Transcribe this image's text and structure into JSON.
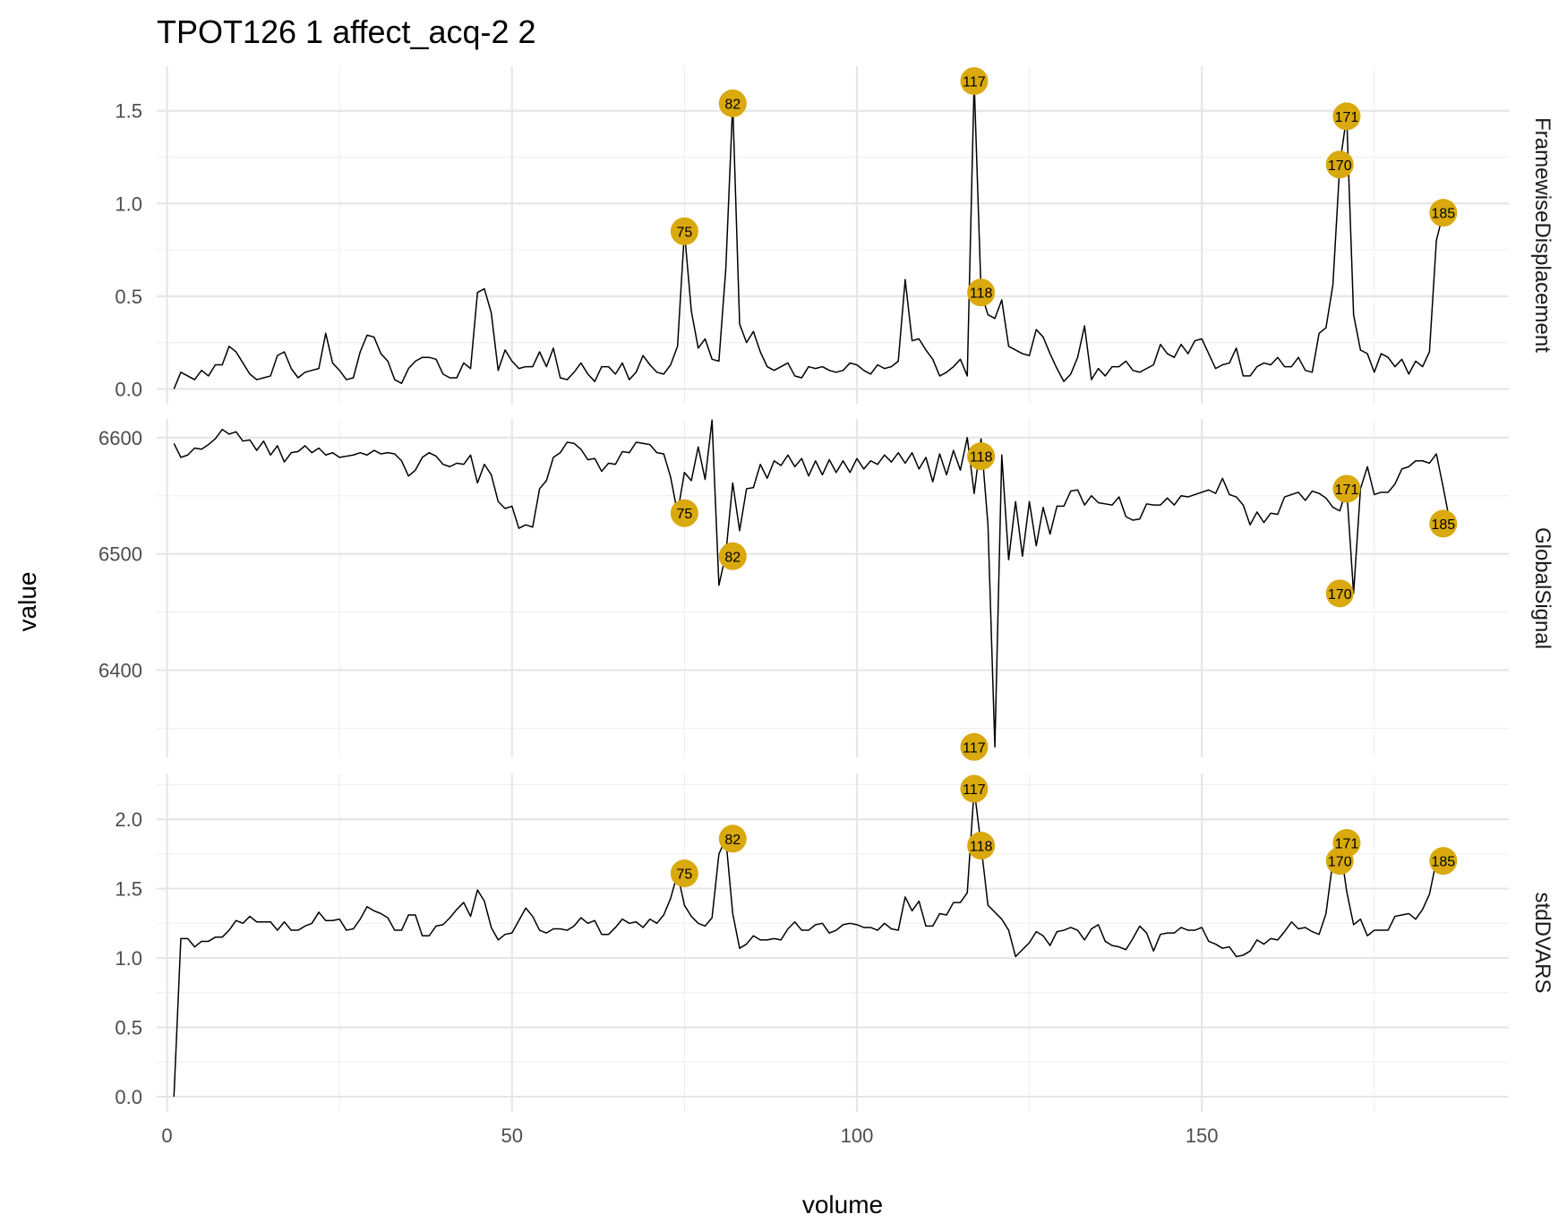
{
  "chart_data": {
    "type": "line",
    "title": "TPOT126  1  affect_acq-2  2",
    "xlabel": "volume",
    "ylabel": "value",
    "xlim": [
      -1.5,
      194.5
    ],
    "x_ticks": [
      0,
      50,
      100,
      150
    ],
    "grid": true,
    "highlight_color": "#D9A90D",
    "line_color": "#000000",
    "panels": [
      {
        "name": "FramewiseDisplacement",
        "ylim": [
          -0.08,
          1.74
        ],
        "y_ticks": [
          0.0,
          0.5,
          1.0,
          1.5
        ],
        "y_tick_labels": [
          "0.0",
          "0.5",
          "1.0",
          "1.5"
        ],
        "values": [
          0.0,
          0.09,
          0.07,
          0.05,
          0.1,
          0.07,
          0.13,
          0.13,
          0.23,
          0.2,
          0.14,
          0.08,
          0.05,
          0.06,
          0.07,
          0.18,
          0.2,
          0.11,
          0.06,
          0.09,
          0.1,
          0.11,
          0.3,
          0.14,
          0.1,
          0.05,
          0.06,
          0.2,
          0.29,
          0.28,
          0.19,
          0.15,
          0.05,
          0.03,
          0.11,
          0.15,
          0.17,
          0.17,
          0.16,
          0.08,
          0.06,
          0.06,
          0.14,
          0.11,
          0.52,
          0.54,
          0.41,
          0.1,
          0.21,
          0.15,
          0.11,
          0.12,
          0.12,
          0.2,
          0.12,
          0.22,
          0.06,
          0.05,
          0.09,
          0.14,
          0.08,
          0.04,
          0.12,
          0.12,
          0.08,
          0.14,
          0.05,
          0.09,
          0.18,
          0.13,
          0.09,
          0.08,
          0.13,
          0.23,
          0.85,
          0.42,
          0.22,
          0.27,
          0.16,
          0.15,
          0.65,
          1.54,
          0.35,
          0.25,
          0.31,
          0.2,
          0.12,
          0.1,
          0.12,
          0.14,
          0.07,
          0.06,
          0.12,
          0.11,
          0.12,
          0.1,
          0.09,
          0.1,
          0.14,
          0.13,
          0.1,
          0.08,
          0.13,
          0.11,
          0.12,
          0.15,
          0.59,
          0.26,
          0.27,
          0.21,
          0.16,
          0.07,
          0.09,
          0.12,
          0.16,
          0.07,
          1.66,
          0.52,
          0.4,
          0.38,
          0.48,
          0.23,
          0.21,
          0.19,
          0.18,
          0.32,
          0.28,
          0.19,
          0.11,
          0.04,
          0.08,
          0.17,
          0.34,
          0.05,
          0.11,
          0.07,
          0.12,
          0.12,
          0.15,
          0.1,
          0.09,
          0.11,
          0.13,
          0.24,
          0.19,
          0.17,
          0.24,
          0.19,
          0.26,
          0.27,
          0.19,
          0.11,
          0.13,
          0.14,
          0.22,
          0.07,
          0.07,
          0.12,
          0.14,
          0.13,
          0.17,
          0.12,
          0.12,
          0.17,
          0.1,
          0.09,
          0.3,
          0.33,
          0.56,
          1.21,
          1.47,
          0.4,
          0.21,
          0.19,
          0.09,
          0.19,
          0.17,
          0.12,
          0.16,
          0.08,
          0.15,
          0.12,
          0.2,
          0.8,
          0.95
        ],
        "labeled_points": [
          {
            "x": 75,
            "y": 0.85,
            "label": "75"
          },
          {
            "x": 82,
            "y": 1.54,
            "label": "82"
          },
          {
            "x": 117,
            "y": 1.66,
            "label": "117"
          },
          {
            "x": 118,
            "y": 0.52,
            "label": "118"
          },
          {
            "x": 170,
            "y": 1.21,
            "label": "170"
          },
          {
            "x": 171,
            "y": 1.47,
            "label": "171"
          },
          {
            "x": 185,
            "y": 0.95,
            "label": "185"
          }
        ]
      },
      {
        "name": "GlobalSignal",
        "ylim": [
          6325,
          6616
        ],
        "y_ticks": [
          6400,
          6500,
          6600
        ],
        "y_tick_labels": [
          "6400",
          "6500",
          "6600"
        ],
        "values": [
          6595,
          6583,
          6585,
          6591,
          6590,
          6594,
          6599,
          6607,
          6603,
          6605,
          6597,
          6598,
          6589,
          6597,
          6585,
          6593,
          6579,
          6587,
          6588,
          6593,
          6587,
          6591,
          6585,
          6587,
          6583,
          6584,
          6585,
          6587,
          6585,
          6589,
          6586,
          6587,
          6586,
          6580,
          6567,
          6572,
          6583,
          6587,
          6584,
          6577,
          6575,
          6578,
          6577,
          6585,
          6561,
          6577,
          6568,
          6545,
          6539,
          6541,
          6522,
          6525,
          6523,
          6556,
          6563,
          6583,
          6587,
          6596,
          6595,
          6590,
          6581,
          6582,
          6571,
          6578,
          6577,
          6588,
          6587,
          6596,
          6595,
          6594,
          6587,
          6586,
          6566,
          6535,
          6570,
          6563,
          6592,
          6564,
          6615,
          6473,
          6500,
          6561,
          6520,
          6556,
          6557,
          6577,
          6565,
          6580,
          6576,
          6585,
          6575,
          6582,
          6567,
          6580,
          6568,
          6581,
          6570,
          6580,
          6570,
          6582,
          6573,
          6580,
          6577,
          6585,
          6579,
          6587,
          6578,
          6587,
          6573,
          6583,
          6562,
          6586,
          6568,
          6589,
          6572,
          6600,
          6552,
          6599,
          6525,
          6334,
          6585,
          6495,
          6545,
          6498,
          6545,
          6507,
          6540,
          6517,
          6541,
          6541,
          6554,
          6555,
          6542,
          6550,
          6544,
          6543,
          6542,
          6549,
          6532,
          6529,
          6530,
          6543,
          6542,
          6542,
          6548,
          6542,
          6550,
          6549,
          6551,
          6553,
          6555,
          6552,
          6565,
          6551,
          6549,
          6542,
          6525,
          6536,
          6527,
          6535,
          6534,
          6549,
          6551,
          6553,
          6546,
          6554,
          6552,
          6548,
          6540,
          6537,
          6556,
          6466,
          6556,
          6575,
          6551,
          6553,
          6553,
          6560,
          6573,
          6575,
          6580,
          6580,
          6578,
          6586,
          6557,
          6526
        ],
        "labeled_points": [
          {
            "x": 75,
            "y": 6535,
            "label": "75"
          },
          {
            "x": 82,
            "y": 6498,
            "label": "82"
          },
          {
            "x": 117,
            "y": 6334,
            "label": "117"
          },
          {
            "x": 118,
            "y": 6584,
            "label": "118"
          },
          {
            "x": 170,
            "y": 6466,
            "label": "170"
          },
          {
            "x": 171,
            "y": 6556,
            "label": "171"
          },
          {
            "x": 185,
            "y": 6526,
            "label": "185"
          }
        ]
      },
      {
        "name": "stdDVARS",
        "ylim": [
          -0.11,
          2.33
        ],
        "y_ticks": [
          0.0,
          0.5,
          1.0,
          1.5,
          2.0
        ],
        "y_tick_labels": [
          "0.0",
          "0.5",
          "1.0",
          "1.5",
          "2.0"
        ],
        "values": [
          0.0,
          1.14,
          1.14,
          1.08,
          1.12,
          1.12,
          1.15,
          1.15,
          1.2,
          1.27,
          1.25,
          1.3,
          1.26,
          1.26,
          1.26,
          1.2,
          1.26,
          1.2,
          1.2,
          1.23,
          1.25,
          1.33,
          1.27,
          1.27,
          1.28,
          1.2,
          1.21,
          1.28,
          1.37,
          1.34,
          1.32,
          1.29,
          1.2,
          1.2,
          1.31,
          1.31,
          1.16,
          1.16,
          1.23,
          1.24,
          1.29,
          1.35,
          1.4,
          1.3,
          1.49,
          1.41,
          1.22,
          1.13,
          1.17,
          1.18,
          1.27,
          1.36,
          1.3,
          1.2,
          1.18,
          1.21,
          1.21,
          1.2,
          1.23,
          1.29,
          1.25,
          1.27,
          1.17,
          1.17,
          1.22,
          1.28,
          1.25,
          1.26,
          1.22,
          1.28,
          1.25,
          1.31,
          1.43,
          1.61,
          1.38,
          1.3,
          1.25,
          1.23,
          1.29,
          1.75,
          1.86,
          1.32,
          1.07,
          1.1,
          1.16,
          1.13,
          1.13,
          1.14,
          1.13,
          1.21,
          1.26,
          1.2,
          1.2,
          1.24,
          1.25,
          1.18,
          1.2,
          1.24,
          1.25,
          1.24,
          1.22,
          1.22,
          1.2,
          1.25,
          1.21,
          1.2,
          1.44,
          1.34,
          1.41,
          1.23,
          1.23,
          1.32,
          1.31,
          1.4,
          1.4,
          1.47,
          2.22,
          1.81,
          1.38,
          1.33,
          1.28,
          1.2,
          1.01,
          1.06,
          1.11,
          1.19,
          1.16,
          1.09,
          1.19,
          1.2,
          1.22,
          1.2,
          1.13,
          1.21,
          1.24,
          1.12,
          1.09,
          1.08,
          1.06,
          1.14,
          1.23,
          1.18,
          1.05,
          1.17,
          1.18,
          1.18,
          1.22,
          1.2,
          1.2,
          1.22,
          1.12,
          1.1,
          1.07,
          1.08,
          1.01,
          1.02,
          1.05,
          1.13,
          1.1,
          1.14,
          1.13,
          1.19,
          1.26,
          1.21,
          1.22,
          1.19,
          1.17,
          1.32,
          1.7,
          1.83,
          1.48,
          1.24,
          1.28,
          1.16,
          1.2,
          1.2,
          1.2,
          1.3,
          1.31,
          1.32,
          1.28,
          1.35,
          1.46,
          1.7
        ],
        "labeled_points": [
          {
            "x": 75,
            "y": 1.61,
            "label": "75"
          },
          {
            "x": 82,
            "y": 1.86,
            "label": "82"
          },
          {
            "x": 117,
            "y": 2.22,
            "label": "117"
          },
          {
            "x": 118,
            "y": 1.81,
            "label": "118"
          },
          {
            "x": 170,
            "y": 1.7,
            "label": "170"
          },
          {
            "x": 171,
            "y": 1.83,
            "label": "171"
          },
          {
            "x": 185,
            "y": 1.7,
            "label": "185"
          }
        ]
      }
    ]
  }
}
